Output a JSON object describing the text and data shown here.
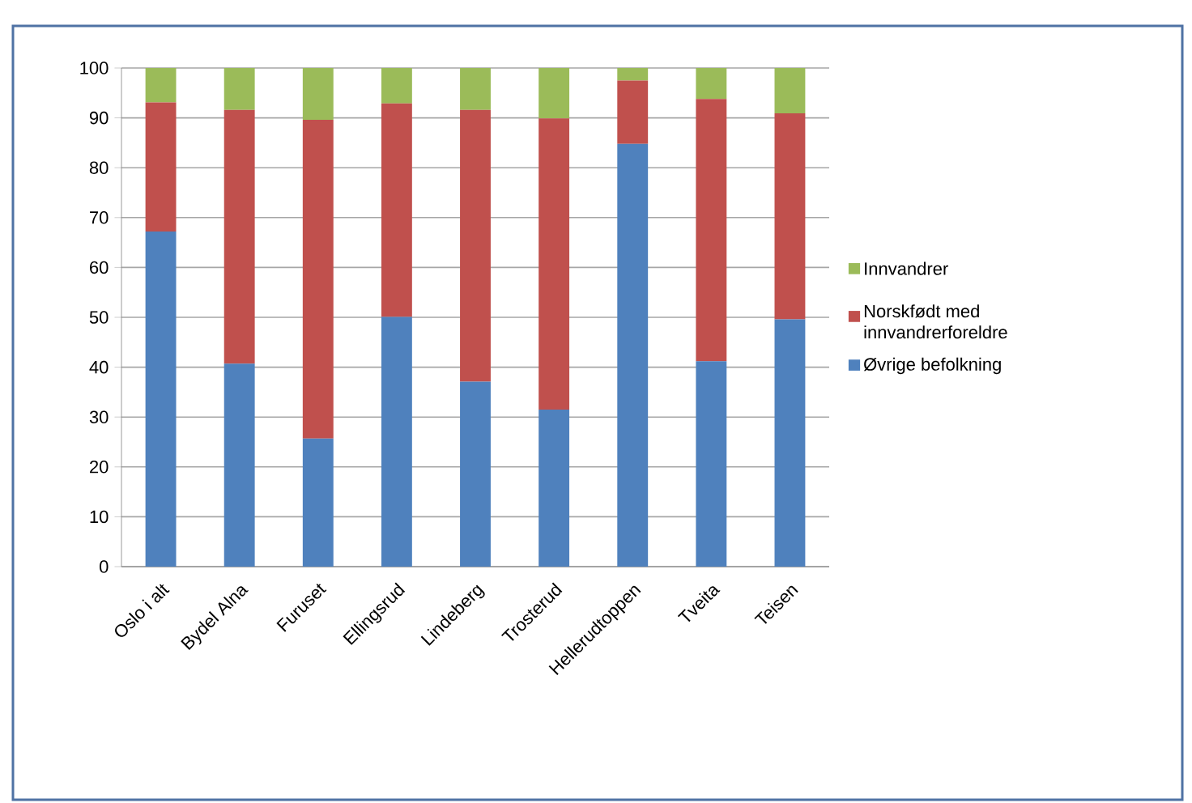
{
  "chart_data": {
    "type": "bar",
    "stacked": true,
    "categories": [
      "Oslo i alt",
      "Bydel Alna",
      "Furuset",
      "Ellingsrud",
      "Lindeberg",
      "Trosterud",
      "Hellerudtoppen",
      "Tveita",
      "Teisen"
    ],
    "series": [
      {
        "name": "Øvrige befolkning",
        "color": "#4f81bd",
        "values": [
          67.2,
          40.7,
          25.7,
          50.1,
          37.1,
          31.5,
          84.8,
          41.2,
          49.6
        ]
      },
      {
        "name": "Norskfødt med innvandrerforeldre",
        "color": "#c0504d",
        "values": [
          25.9,
          50.9,
          63.9,
          42.8,
          54.5,
          58.4,
          12.7,
          52.6,
          41.3
        ]
      },
      {
        "name": "Innvandrer",
        "color": "#9bbb59",
        "values": [
          6.9,
          8.4,
          10.4,
          7.1,
          8.4,
          10.1,
          2.5,
          6.2,
          9.1
        ]
      }
    ],
    "ylim": [
      0,
      100
    ],
    "yticks": [
      0,
      10,
      20,
      30,
      40,
      50,
      60,
      70,
      80,
      90,
      100
    ],
    "grid": "y",
    "legend": "right"
  }
}
